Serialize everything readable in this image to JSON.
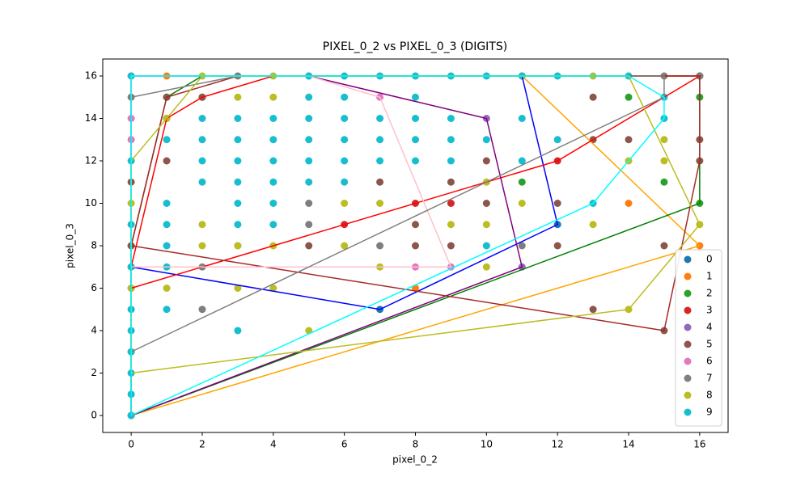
{
  "chart_data": {
    "type": "scatter",
    "title": "PIXEL_0_2 vs PIXEL_0_3 (DIGITS)",
    "x_label": "pixel_0_2",
    "y_label": "pixel_0_3",
    "xlim": [
      -0.8,
      16.8
    ],
    "ylim": [
      -0.8,
      16.8
    ],
    "xticks": [
      0,
      2,
      4,
      6,
      8,
      10,
      12,
      14,
      16
    ],
    "yticks": [
      0,
      2,
      4,
      6,
      8,
      10,
      12,
      14,
      16
    ],
    "legend": "lower right",
    "series": [
      {
        "name": "0",
        "color": "#1f77b4",
        "x": [
          0,
          7,
          12,
          11
        ],
        "y": [
          7,
          5,
          9,
          16
        ]
      },
      {
        "name": "1",
        "color": "#ff7f0e",
        "x": [
          0,
          1,
          8,
          14,
          16,
          11
        ],
        "y": [
          0,
          16,
          6,
          10,
          8,
          16
        ]
      },
      {
        "name": "2",
        "color": "#2ca02c",
        "x": [
          0,
          1,
          11,
          14,
          15,
          16,
          16
        ],
        "y": [
          8,
          15,
          11,
          15,
          11,
          10,
          15
        ]
      },
      {
        "name": "3",
        "color": "#d62728",
        "x": [
          0,
          1,
          2,
          6,
          8,
          9,
          12,
          16
        ],
        "y": [
          6,
          14,
          15,
          9,
          10,
          10,
          12,
          16
        ]
      },
      {
        "name": "4",
        "color": "#9467bd",
        "x": [
          0,
          11,
          10,
          5
        ],
        "y": [
          0,
          7,
          14,
          16
        ]
      },
      {
        "name": "5",
        "color": "#8c564b",
        "x": [
          0,
          0,
          1,
          1,
          2,
          5,
          7,
          8,
          8,
          9,
          9,
          10,
          10,
          12,
          12,
          13,
          13,
          13,
          14,
          15,
          15,
          16,
          16,
          16
        ],
        "y": [
          8,
          11,
          12,
          15,
          15,
          8,
          11,
          8,
          9,
          8,
          11,
          10,
          12,
          8,
          10,
          5,
          13,
          15,
          13,
          4,
          8,
          12,
          13,
          16
        ]
      },
      {
        "name": "6",
        "color": "#e377c2",
        "x": [
          0,
          0,
          0,
          7,
          8,
          9
        ],
        "y": [
          16,
          14,
          13,
          15,
          7,
          7
        ]
      },
      {
        "name": "7",
        "color": "#7f7f7f",
        "x": [
          0,
          0,
          2,
          2,
          3,
          3,
          5,
          5,
          7,
          15,
          15,
          11,
          16
        ],
        "y": [
          15,
          3,
          5,
          7,
          8,
          16,
          9,
          10,
          8,
          16,
          15,
          8,
          16
        ]
      },
      {
        "name": "8",
        "color": "#bcbd22",
        "x": [
          0,
          0,
          1,
          1,
          2,
          2,
          2,
          3,
          3,
          3,
          4,
          4,
          4,
          4,
          5,
          6,
          6,
          7,
          7,
          9,
          10,
          10,
          10,
          11,
          13,
          13,
          14,
          14,
          15,
          15,
          16
        ],
        "y": [
          6,
          10,
          6,
          14,
          8,
          9,
          16,
          6,
          8,
          15,
          6,
          8,
          15,
          16,
          4,
          8,
          10,
          7,
          10,
          9,
          7,
          9,
          11,
          10,
          9,
          16,
          5,
          12,
          12,
          13,
          9
        ]
      },
      {
        "name": "9",
        "color": "#17becf",
        "x": [
          0,
          0,
          0,
          0,
          0,
          0,
          0,
          0,
          0,
          0,
          1,
          1,
          1,
          1,
          1,
          1,
          2,
          2,
          2,
          2,
          3,
          3,
          3,
          3,
          3,
          3,
          3,
          4,
          4,
          4,
          4,
          4,
          4,
          5,
          5,
          5,
          5,
          5,
          5,
          6,
          6,
          6,
          6,
          6,
          6,
          7,
          7,
          7,
          7,
          8,
          8,
          8,
          8,
          8,
          9,
          9,
          9,
          9,
          10,
          10,
          10,
          11,
          11,
          11,
          12,
          12,
          13,
          14,
          15,
          15
        ],
        "y": [
          0,
          1,
          2,
          3,
          4,
          5,
          7,
          9,
          12,
          16,
          5,
          7,
          8,
          9,
          10,
          13,
          11,
          12,
          13,
          14,
          4,
          9,
          10,
          11,
          12,
          13,
          14,
          9,
          10,
          11,
          12,
          13,
          14,
          11,
          12,
          13,
          14,
          15,
          16,
          11,
          12,
          13,
          14,
          15,
          16,
          12,
          13,
          14,
          16,
          12,
          13,
          14,
          15,
          16,
          12,
          13,
          14,
          16,
          8,
          13,
          16,
          12,
          14,
          16,
          13,
          16,
          10,
          16,
          14,
          15
        ]
      }
    ],
    "hulls": [
      {
        "color": "#0000ff",
        "x": [
          0,
          7,
          12,
          11,
          0
        ],
        "y": [
          7,
          5,
          9,
          16,
          16
        ]
      },
      {
        "color": "#ffa500",
        "x": [
          0,
          16,
          11,
          0
        ],
        "y": [
          0,
          8,
          16,
          16
        ]
      },
      {
        "color": "#008000",
        "x": [
          0,
          16,
          16,
          2,
          1,
          0
        ],
        "y": [
          0,
          10,
          16,
          16,
          15,
          8
        ]
      },
      {
        "color": "#ff0000",
        "x": [
          0,
          12,
          16,
          4,
          2,
          1,
          0
        ],
        "y": [
          6,
          12,
          16,
          16,
          15,
          14,
          7
        ]
      },
      {
        "color": "#800080",
        "x": [
          0,
          11,
          10,
          5,
          0
        ],
        "y": [
          0,
          7,
          14,
          16,
          16
        ]
      },
      {
        "color": "#a52a2a",
        "x": [
          0,
          15,
          16,
          16,
          3,
          1
        ],
        "y": [
          8,
          4,
          12,
          16,
          16,
          15
        ]
      },
      {
        "color": "#ffc0cb",
        "x": [
          0,
          9,
          7,
          5,
          0
        ],
        "y": [
          7,
          7,
          15,
          16,
          16
        ]
      },
      {
        "color": "#808080",
        "x": [
          0,
          15,
          15,
          3,
          0
        ],
        "y": [
          3,
          15,
          16,
          16,
          15
        ]
      },
      {
        "color": "#bcbd22",
        "x": [
          0,
          14,
          16,
          14,
          2,
          0
        ],
        "y": [
          2,
          5,
          9,
          16,
          16,
          12
        ]
      },
      {
        "color": "#00ffff",
        "x": [
          0,
          13,
          15,
          15,
          14,
          0
        ],
        "y": [
          0,
          10,
          14,
          15,
          16,
          16
        ]
      }
    ]
  }
}
